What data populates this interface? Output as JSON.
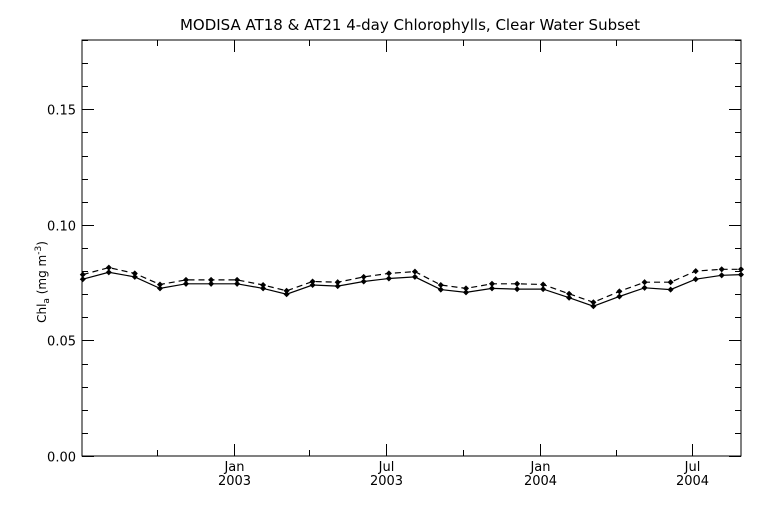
{
  "chart_data": {
    "type": "line",
    "title": "MODISA AT18 & AT21 4-day Chlorophylls, Clear Water Subset",
    "ylabel": "Chl",
    "ylabel_sub": "a",
    "ylabel_unit_open": " (mg m",
    "ylabel_unit_sup": "-3",
    "ylabel_unit_close": ")",
    "ylim": [
      0.0,
      0.18
    ],
    "y_ticks": [
      {
        "value": 0.0,
        "label": "0.00"
      },
      {
        "value": 0.05,
        "label": "0.05"
      },
      {
        "value": 0.1,
        "label": "0.10"
      },
      {
        "value": 0.15,
        "label": "0.15"
      }
    ],
    "y_minor_step": 0.01,
    "xlim": [
      "2002-07-04",
      "2004-08-28"
    ],
    "x_ticks": [
      {
        "date": "2003-01-01",
        "month": "Jan",
        "year": "2003"
      },
      {
        "date": "2003-07-01",
        "month": "Jul",
        "year": "2003"
      },
      {
        "date": "2004-01-01",
        "month": "Jan",
        "year": "2004"
      },
      {
        "date": "2004-07-01",
        "month": "Jul",
        "year": "2004"
      }
    ],
    "x_minor_ticks": [
      "2002-10-01",
      "2003-04-01",
      "2003-10-01",
      "2004-04-01"
    ],
    "grid": false,
    "series": [
      {
        "style": "solid",
        "x": [
          "2002-07-05",
          "2002-08-05",
          "2002-09-05",
          "2002-10-05",
          "2002-11-05",
          "2002-12-05",
          "2003-01-05",
          "2003-02-05",
          "2003-03-05",
          "2003-04-05",
          "2003-05-05",
          "2003-06-05",
          "2003-07-05",
          "2003-08-05",
          "2003-09-05",
          "2003-10-05",
          "2003-11-05",
          "2003-12-05",
          "2004-01-05",
          "2004-02-05",
          "2004-03-05",
          "2004-04-05",
          "2004-05-05",
          "2004-06-05",
          "2004-07-05",
          "2004-08-05",
          "2004-08-28"
        ],
        "values": [
          0.0765,
          0.0795,
          0.0775,
          0.0725,
          0.0745,
          0.0745,
          0.0745,
          0.0725,
          0.07,
          0.074,
          0.0735,
          0.0755,
          0.0768,
          0.0775,
          0.072,
          0.0708,
          0.0725,
          0.0722,
          0.0722,
          0.0685,
          0.0648,
          0.069,
          0.0728,
          0.072,
          0.0765,
          0.0782,
          0.0785
        ]
      },
      {
        "style": "dashed",
        "x": [
          "2002-07-05",
          "2002-08-05",
          "2002-09-05",
          "2002-10-05",
          "2002-11-05",
          "2002-12-05",
          "2003-01-05",
          "2003-02-05",
          "2003-03-05",
          "2003-04-05",
          "2003-05-05",
          "2003-06-05",
          "2003-07-05",
          "2003-08-05",
          "2003-09-05",
          "2003-10-05",
          "2003-11-05",
          "2003-12-05",
          "2004-01-05",
          "2004-02-05",
          "2004-03-05",
          "2004-04-05",
          "2004-05-05",
          "2004-06-05",
          "2004-07-05",
          "2004-08-05",
          "2004-08-28"
        ],
        "values": [
          0.0785,
          0.0815,
          0.079,
          0.0742,
          0.0762,
          0.0762,
          0.0762,
          0.074,
          0.0715,
          0.0755,
          0.0752,
          0.0775,
          0.079,
          0.0798,
          0.074,
          0.0725,
          0.0745,
          0.0745,
          0.0742,
          0.0702,
          0.0665,
          0.0712,
          0.0752,
          0.0752,
          0.08,
          0.0808,
          0.0808
        ]
      }
    ]
  }
}
